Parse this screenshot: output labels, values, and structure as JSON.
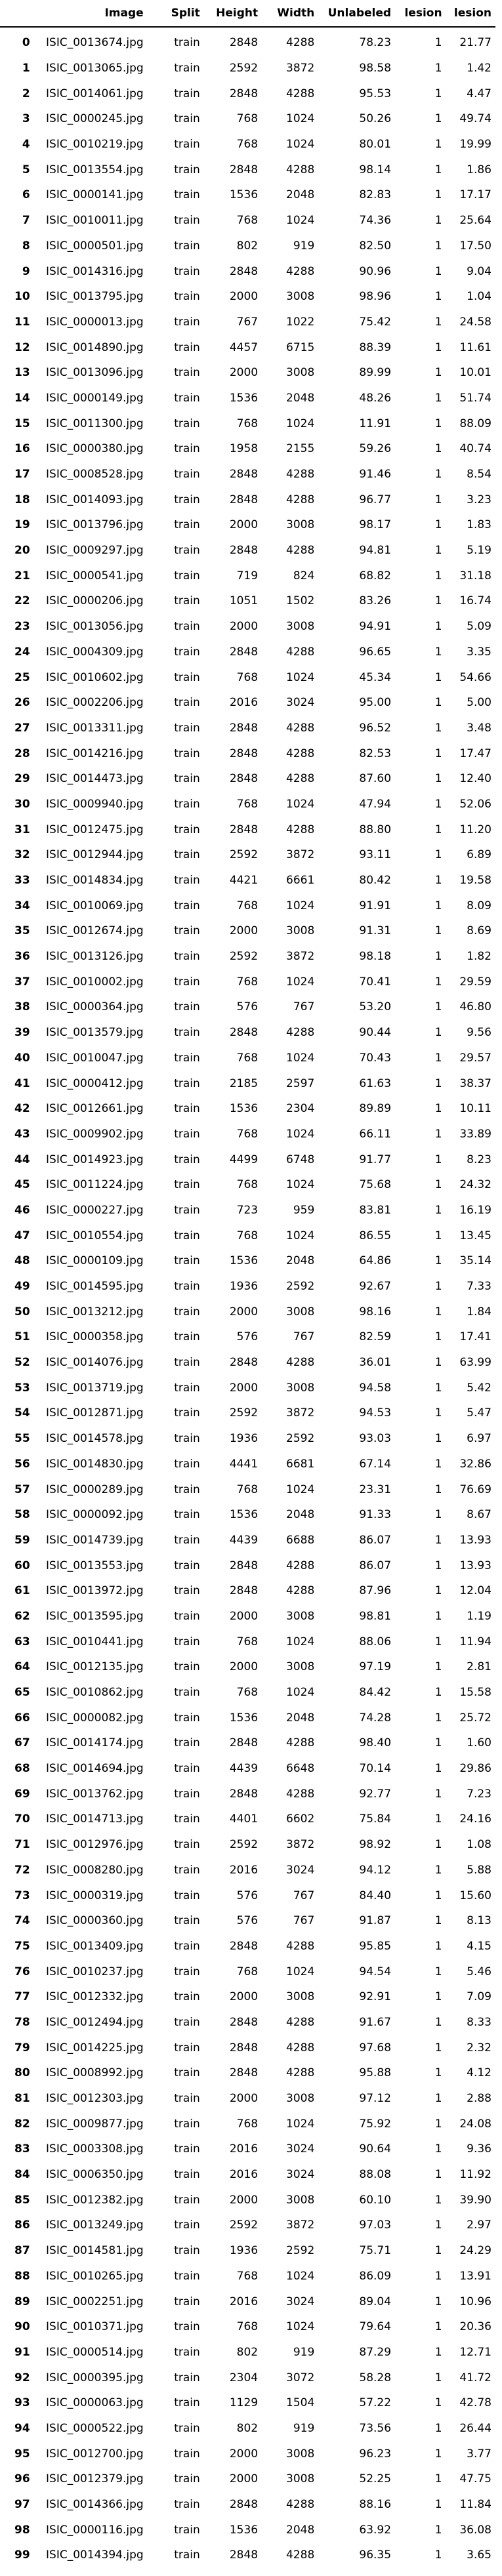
{
  "table": {
    "headers": [
      "",
      "Image",
      "Split",
      "Height",
      "Width",
      "Unlabeled",
      "lesion",
      "lesion"
    ],
    "rows": [
      [
        "0",
        "ISIC_0013674.jpg",
        "train",
        "2848",
        "4288",
        "78.23",
        "1",
        "21.77"
      ],
      [
        "1",
        "ISIC_0013065.jpg",
        "train",
        "2592",
        "3872",
        "98.58",
        "1",
        "1.42"
      ],
      [
        "2",
        "ISIC_0014061.jpg",
        "train",
        "2848",
        "4288",
        "95.53",
        "1",
        "4.47"
      ],
      [
        "3",
        "ISIC_0000245.jpg",
        "train",
        "768",
        "1024",
        "50.26",
        "1",
        "49.74"
      ],
      [
        "4",
        "ISIC_0010219.jpg",
        "train",
        "768",
        "1024",
        "80.01",
        "1",
        "19.99"
      ],
      [
        "5",
        "ISIC_0013554.jpg",
        "train",
        "2848",
        "4288",
        "98.14",
        "1",
        "1.86"
      ],
      [
        "6",
        "ISIC_0000141.jpg",
        "train",
        "1536",
        "2048",
        "82.83",
        "1",
        "17.17"
      ],
      [
        "7",
        "ISIC_0010011.jpg",
        "train",
        "768",
        "1024",
        "74.36",
        "1",
        "25.64"
      ],
      [
        "8",
        "ISIC_0000501.jpg",
        "train",
        "802",
        "919",
        "82.50",
        "1",
        "17.50"
      ],
      [
        "9",
        "ISIC_0014316.jpg",
        "train",
        "2848",
        "4288",
        "90.96",
        "1",
        "9.04"
      ],
      [
        "10",
        "ISIC_0013795.jpg",
        "train",
        "2000",
        "3008",
        "98.96",
        "1",
        "1.04"
      ],
      [
        "11",
        "ISIC_0000013.jpg",
        "train",
        "767",
        "1022",
        "75.42",
        "1",
        "24.58"
      ],
      [
        "12",
        "ISIC_0014890.jpg",
        "train",
        "4457",
        "6715",
        "88.39",
        "1",
        "11.61"
      ],
      [
        "13",
        "ISIC_0013096.jpg",
        "train",
        "2000",
        "3008",
        "89.99",
        "1",
        "10.01"
      ],
      [
        "14",
        "ISIC_0000149.jpg",
        "train",
        "1536",
        "2048",
        "48.26",
        "1",
        "51.74"
      ],
      [
        "15",
        "ISIC_0011300.jpg",
        "train",
        "768",
        "1024",
        "11.91",
        "1",
        "88.09"
      ],
      [
        "16",
        "ISIC_0000380.jpg",
        "train",
        "1958",
        "2155",
        "59.26",
        "1",
        "40.74"
      ],
      [
        "17",
        "ISIC_0008528.jpg",
        "train",
        "2848",
        "4288",
        "91.46",
        "1",
        "8.54"
      ],
      [
        "18",
        "ISIC_0014093.jpg",
        "train",
        "2848",
        "4288",
        "96.77",
        "1",
        "3.23"
      ],
      [
        "19",
        "ISIC_0013796.jpg",
        "train",
        "2000",
        "3008",
        "98.17",
        "1",
        "1.83"
      ],
      [
        "20",
        "ISIC_0009297.jpg",
        "train",
        "2848",
        "4288",
        "94.81",
        "1",
        "5.19"
      ],
      [
        "21",
        "ISIC_0000541.jpg",
        "train",
        "719",
        "824",
        "68.82",
        "1",
        "31.18"
      ],
      [
        "22",
        "ISIC_0000206.jpg",
        "train",
        "1051",
        "1502",
        "83.26",
        "1",
        "16.74"
      ],
      [
        "23",
        "ISIC_0013056.jpg",
        "train",
        "2000",
        "3008",
        "94.91",
        "1",
        "5.09"
      ],
      [
        "24",
        "ISIC_0004309.jpg",
        "train",
        "2848",
        "4288",
        "96.65",
        "1",
        "3.35"
      ],
      [
        "25",
        "ISIC_0010602.jpg",
        "train",
        "768",
        "1024",
        "45.34",
        "1",
        "54.66"
      ],
      [
        "26",
        "ISIC_0002206.jpg",
        "train",
        "2016",
        "3024",
        "95.00",
        "1",
        "5.00"
      ],
      [
        "27",
        "ISIC_0013311.jpg",
        "train",
        "2848",
        "4288",
        "96.52",
        "1",
        "3.48"
      ],
      [
        "28",
        "ISIC_0014216.jpg",
        "train",
        "2848",
        "4288",
        "82.53",
        "1",
        "17.47"
      ],
      [
        "29",
        "ISIC_0014473.jpg",
        "train",
        "2848",
        "4288",
        "87.60",
        "1",
        "12.40"
      ],
      [
        "30",
        "ISIC_0009940.jpg",
        "train",
        "768",
        "1024",
        "47.94",
        "1",
        "52.06"
      ],
      [
        "31",
        "ISIC_0012475.jpg",
        "train",
        "2848",
        "4288",
        "88.80",
        "1",
        "11.20"
      ],
      [
        "32",
        "ISIC_0012944.jpg",
        "train",
        "2592",
        "3872",
        "93.11",
        "1",
        "6.89"
      ],
      [
        "33",
        "ISIC_0014834.jpg",
        "train",
        "4421",
        "6661",
        "80.42",
        "1",
        "19.58"
      ],
      [
        "34",
        "ISIC_0010069.jpg",
        "train",
        "768",
        "1024",
        "91.91",
        "1",
        "8.09"
      ],
      [
        "35",
        "ISIC_0012674.jpg",
        "train",
        "2000",
        "3008",
        "91.31",
        "1",
        "8.69"
      ],
      [
        "36",
        "ISIC_0013126.jpg",
        "train",
        "2592",
        "3872",
        "98.18",
        "1",
        "1.82"
      ],
      [
        "37",
        "ISIC_0010002.jpg",
        "train",
        "768",
        "1024",
        "70.41",
        "1",
        "29.59"
      ],
      [
        "38",
        "ISIC_0000364.jpg",
        "train",
        "576",
        "767",
        "53.20",
        "1",
        "46.80"
      ],
      [
        "39",
        "ISIC_0013579.jpg",
        "train",
        "2848",
        "4288",
        "90.44",
        "1",
        "9.56"
      ],
      [
        "40",
        "ISIC_0010047.jpg",
        "train",
        "768",
        "1024",
        "70.43",
        "1",
        "29.57"
      ],
      [
        "41",
        "ISIC_0000412.jpg",
        "train",
        "2185",
        "2597",
        "61.63",
        "1",
        "38.37"
      ],
      [
        "42",
        "ISIC_0012661.jpg",
        "train",
        "1536",
        "2304",
        "89.89",
        "1",
        "10.11"
      ],
      [
        "43",
        "ISIC_0009902.jpg",
        "train",
        "768",
        "1024",
        "66.11",
        "1",
        "33.89"
      ],
      [
        "44",
        "ISIC_0014923.jpg",
        "train",
        "4499",
        "6748",
        "91.77",
        "1",
        "8.23"
      ],
      [
        "45",
        "ISIC_0011224.jpg",
        "train",
        "768",
        "1024",
        "75.68",
        "1",
        "24.32"
      ],
      [
        "46",
        "ISIC_0000227.jpg",
        "train",
        "723",
        "959",
        "83.81",
        "1",
        "16.19"
      ],
      [
        "47",
        "ISIC_0010554.jpg",
        "train",
        "768",
        "1024",
        "86.55",
        "1",
        "13.45"
      ],
      [
        "48",
        "ISIC_0000109.jpg",
        "train",
        "1536",
        "2048",
        "64.86",
        "1",
        "35.14"
      ],
      [
        "49",
        "ISIC_0014595.jpg",
        "train",
        "1936",
        "2592",
        "92.67",
        "1",
        "7.33"
      ],
      [
        "50",
        "ISIC_0013212.jpg",
        "train",
        "2000",
        "3008",
        "98.16",
        "1",
        "1.84"
      ],
      [
        "51",
        "ISIC_0000358.jpg",
        "train",
        "576",
        "767",
        "82.59",
        "1",
        "17.41"
      ],
      [
        "52",
        "ISIC_0014076.jpg",
        "train",
        "2848",
        "4288",
        "36.01",
        "1",
        "63.99"
      ],
      [
        "53",
        "ISIC_0013719.jpg",
        "train",
        "2000",
        "3008",
        "94.58",
        "1",
        "5.42"
      ],
      [
        "54",
        "ISIC_0012871.jpg",
        "train",
        "2592",
        "3872",
        "94.53",
        "1",
        "5.47"
      ],
      [
        "55",
        "ISIC_0014578.jpg",
        "train",
        "1936",
        "2592",
        "93.03",
        "1",
        "6.97"
      ],
      [
        "56",
        "ISIC_0014830.jpg",
        "train",
        "4441",
        "6681",
        "67.14",
        "1",
        "32.86"
      ],
      [
        "57",
        "ISIC_0000289.jpg",
        "train",
        "768",
        "1024",
        "23.31",
        "1",
        "76.69"
      ],
      [
        "58",
        "ISIC_0000092.jpg",
        "train",
        "1536",
        "2048",
        "91.33",
        "1",
        "8.67"
      ],
      [
        "59",
        "ISIC_0014739.jpg",
        "train",
        "4439",
        "6688",
        "86.07",
        "1",
        "13.93"
      ],
      [
        "60",
        "ISIC_0013553.jpg",
        "train",
        "2848",
        "4288",
        "86.07",
        "1",
        "13.93"
      ],
      [
        "61",
        "ISIC_0013972.jpg",
        "train",
        "2848",
        "4288",
        "87.96",
        "1",
        "12.04"
      ],
      [
        "62",
        "ISIC_0013595.jpg",
        "train",
        "2000",
        "3008",
        "98.81",
        "1",
        "1.19"
      ],
      [
        "63",
        "ISIC_0010441.jpg",
        "train",
        "768",
        "1024",
        "88.06",
        "1",
        "11.94"
      ],
      [
        "64",
        "ISIC_0012135.jpg",
        "train",
        "2000",
        "3008",
        "97.19",
        "1",
        "2.81"
      ],
      [
        "65",
        "ISIC_0010862.jpg",
        "train",
        "768",
        "1024",
        "84.42",
        "1",
        "15.58"
      ],
      [
        "66",
        "ISIC_0000082.jpg",
        "train",
        "1536",
        "2048",
        "74.28",
        "1",
        "25.72"
      ],
      [
        "67",
        "ISIC_0014174.jpg",
        "train",
        "2848",
        "4288",
        "98.40",
        "1",
        "1.60"
      ],
      [
        "68",
        "ISIC_0014694.jpg",
        "train",
        "4439",
        "6648",
        "70.14",
        "1",
        "29.86"
      ],
      [
        "69",
        "ISIC_0013762.jpg",
        "train",
        "2848",
        "4288",
        "92.77",
        "1",
        "7.23"
      ],
      [
        "70",
        "ISIC_0014713.jpg",
        "train",
        "4401",
        "6602",
        "75.84",
        "1",
        "24.16"
      ],
      [
        "71",
        "ISIC_0012976.jpg",
        "train",
        "2592",
        "3872",
        "98.92",
        "1",
        "1.08"
      ],
      [
        "72",
        "ISIC_0008280.jpg",
        "train",
        "2016",
        "3024",
        "94.12",
        "1",
        "5.88"
      ],
      [
        "73",
        "ISIC_0000319.jpg",
        "train",
        "576",
        "767",
        "84.40",
        "1",
        "15.60"
      ],
      [
        "74",
        "ISIC_0000360.jpg",
        "train",
        "576",
        "767",
        "91.87",
        "1",
        "8.13"
      ],
      [
        "75",
        "ISIC_0013409.jpg",
        "train",
        "2848",
        "4288",
        "95.85",
        "1",
        "4.15"
      ],
      [
        "76",
        "ISIC_0010237.jpg",
        "train",
        "768",
        "1024",
        "94.54",
        "1",
        "5.46"
      ],
      [
        "77",
        "ISIC_0012332.jpg",
        "train",
        "2000",
        "3008",
        "92.91",
        "1",
        "7.09"
      ],
      [
        "78",
        "ISIC_0012494.jpg",
        "train",
        "2848",
        "4288",
        "91.67",
        "1",
        "8.33"
      ],
      [
        "79",
        "ISIC_0014225.jpg",
        "train",
        "2848",
        "4288",
        "97.68",
        "1",
        "2.32"
      ],
      [
        "80",
        "ISIC_0008992.jpg",
        "train",
        "2848",
        "4288",
        "95.88",
        "1",
        "4.12"
      ],
      [
        "81",
        "ISIC_0012303.jpg",
        "train",
        "2000",
        "3008",
        "97.12",
        "1",
        "2.88"
      ],
      [
        "82",
        "ISIC_0009877.jpg",
        "train",
        "768",
        "1024",
        "75.92",
        "1",
        "24.08"
      ],
      [
        "83",
        "ISIC_0003308.jpg",
        "train",
        "2016",
        "3024",
        "90.64",
        "1",
        "9.36"
      ],
      [
        "84",
        "ISIC_0006350.jpg",
        "train",
        "2016",
        "3024",
        "88.08",
        "1",
        "11.92"
      ],
      [
        "85",
        "ISIC_0012382.jpg",
        "train",
        "2000",
        "3008",
        "60.10",
        "1",
        "39.90"
      ],
      [
        "86",
        "ISIC_0013249.jpg",
        "train",
        "2592",
        "3872",
        "97.03",
        "1",
        "2.97"
      ],
      [
        "87",
        "ISIC_0014581.jpg",
        "train",
        "1936",
        "2592",
        "75.71",
        "1",
        "24.29"
      ],
      [
        "88",
        "ISIC_0010265.jpg",
        "train",
        "768",
        "1024",
        "86.09",
        "1",
        "13.91"
      ],
      [
        "89",
        "ISIC_0002251.jpg",
        "train",
        "2016",
        "3024",
        "89.04",
        "1",
        "10.96"
      ],
      [
        "90",
        "ISIC_0010371.jpg",
        "train",
        "768",
        "1024",
        "79.64",
        "1",
        "20.36"
      ],
      [
        "91",
        "ISIC_0000514.jpg",
        "train",
        "802",
        "919",
        "87.29",
        "1",
        "12.71"
      ],
      [
        "92",
        "ISIC_0000395.jpg",
        "train",
        "2304",
        "3072",
        "58.28",
        "1",
        "41.72"
      ],
      [
        "93",
        "ISIC_0000063.jpg",
        "train",
        "1129",
        "1504",
        "57.22",
        "1",
        "42.78"
      ],
      [
        "94",
        "ISIC_0000522.jpg",
        "train",
        "802",
        "919",
        "73.56",
        "1",
        "26.44"
      ],
      [
        "95",
        "ISIC_0012700.jpg",
        "train",
        "2000",
        "3008",
        "96.23",
        "1",
        "3.77"
      ],
      [
        "96",
        "ISIC_0012379.jpg",
        "train",
        "2000",
        "3008",
        "52.25",
        "1",
        "47.75"
      ],
      [
        "97",
        "ISIC_0014366.jpg",
        "train",
        "2848",
        "4288",
        "88.16",
        "1",
        "11.84"
      ],
      [
        "98",
        "ISIC_0000116.jpg",
        "train",
        "1536",
        "2048",
        "63.92",
        "1",
        "36.08"
      ],
      [
        "99",
        "ISIC_0014394.jpg",
        "train",
        "2848",
        "4288",
        "96.35",
        "1",
        "3.65"
      ]
    ]
  }
}
